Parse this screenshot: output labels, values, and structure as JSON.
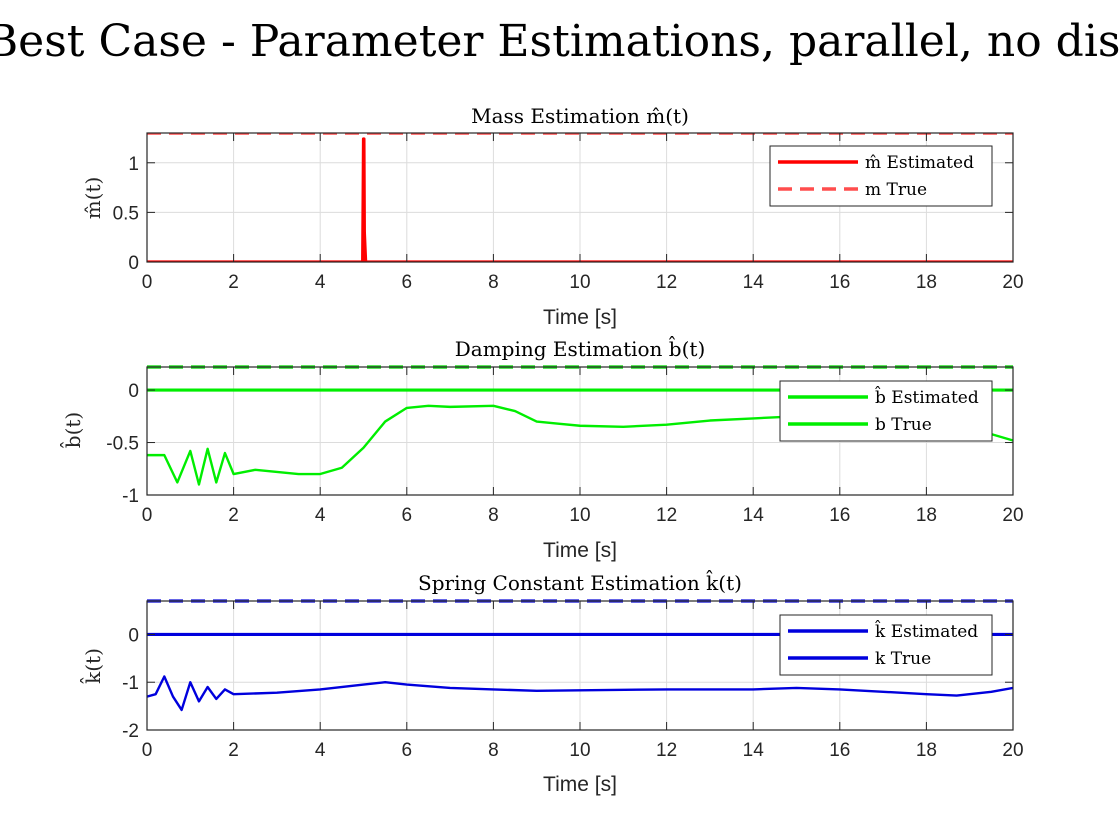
{
  "figure": {
    "title": "Best Case - Parameter Estimations, parallel, no dist"
  },
  "chart_data": [
    {
      "type": "line",
      "title": "Mass Estimation m̂(t)",
      "xlabel": "Time [s]",
      "ylabel": "m̂(t)",
      "xlim": [
        0,
        20
      ],
      "ylim": [
        0,
        1.3
      ],
      "xticks": [
        "0",
        "2",
        "4",
        "6",
        "8",
        "10",
        "12",
        "14",
        "16",
        "18",
        "20"
      ],
      "yticks": [
        "0",
        "0.5",
        "1"
      ],
      "ytick_values": [
        0,
        0.5,
        1
      ],
      "grid": true,
      "legend": "top-right",
      "series": [
        {
          "name": "m̂ Estimated",
          "color": "#ff0000",
          "style": "solid",
          "x": [
            0,
            4.98,
            4.99,
            5.0,
            5.01,
            5.02,
            5.05,
            20
          ],
          "y": [
            0,
            0,
            0.6,
            1.24,
            1.24,
            0.3,
            0,
            0
          ]
        },
        {
          "name": "m True",
          "color": "#ff4d4d",
          "style": "dashed",
          "x": [
            0,
            20
          ],
          "y": [
            1.3,
            1.3
          ]
        }
      ]
    },
    {
      "type": "line",
      "title": "Damping Estimation b̂(t)",
      "xlabel": "Time [s]",
      "ylabel": "b̂(t)",
      "xlim": [
        0,
        20
      ],
      "ylim": [
        -1,
        0.22
      ],
      "xticks": [
        "0",
        "2",
        "4",
        "6",
        "8",
        "10",
        "12",
        "14",
        "16",
        "18",
        "20"
      ],
      "yticks": [
        "-1",
        "-0.5",
        "0"
      ],
      "ytick_values": [
        -1,
        -0.5,
        0
      ],
      "grid": true,
      "legend": "top-right",
      "reference_lines": [
        {
          "y": 0.22,
          "color": "#22dd22",
          "style": "dashed"
        }
      ],
      "series": [
        {
          "name": "b̂ Estimated",
          "color": "#00ee00",
          "style": "solid",
          "x": [
            0,
            0.4,
            0.7,
            1.0,
            1.2,
            1.4,
            1.6,
            1.8,
            2.0,
            2.5,
            3.0,
            3.5,
            4.0,
            4.5,
            5.0,
            5.5,
            6.0,
            6.5,
            7.0,
            8.0,
            8.5,
            9.0,
            9.5,
            10.0,
            11.0,
            12.0,
            13.0,
            14.0,
            15.0,
            16.0,
            17.0,
            18.0,
            19.0,
            19.5,
            20.0
          ],
          "y": [
            -0.62,
            -0.62,
            -0.88,
            -0.58,
            -0.9,
            -0.56,
            -0.88,
            -0.6,
            -0.8,
            -0.76,
            -0.78,
            -0.8,
            -0.8,
            -0.74,
            -0.55,
            -0.3,
            -0.17,
            -0.15,
            -0.16,
            -0.15,
            -0.2,
            -0.3,
            -0.32,
            -0.34,
            -0.35,
            -0.33,
            -0.29,
            -0.27,
            -0.25,
            -0.24,
            -0.24,
            -0.26,
            -0.3,
            -0.42,
            -0.48
          ]
        },
        {
          "name": "b True",
          "color": "#00ee00",
          "style": "solid",
          "x": [
            0,
            20
          ],
          "y": [
            0,
            0
          ]
        }
      ]
    },
    {
      "type": "line",
      "title": "Spring Constant Estimation k̂(t)",
      "xlabel": "Time [s]",
      "ylabel": "k̂(t)",
      "xlim": [
        0,
        20
      ],
      "ylim": [
        -2,
        0.7
      ],
      "xticks": [
        "0",
        "2",
        "4",
        "6",
        "8",
        "10",
        "12",
        "14",
        "16",
        "18",
        "20"
      ],
      "yticks": [
        "-2",
        "-1",
        "0"
      ],
      "ytick_values": [
        -2,
        -1,
        0
      ],
      "grid": true,
      "legend": "top-right",
      "reference_lines": [
        {
          "y": 0.7,
          "color": "#3333dd",
          "style": "dashed"
        }
      ],
      "series": [
        {
          "name": "k̂ Estimated",
          "color": "#0000dd",
          "style": "solid",
          "x": [
            0,
            0.2,
            0.4,
            0.6,
            0.8,
            1.0,
            1.2,
            1.4,
            1.6,
            1.8,
            2.0,
            3.0,
            4.0,
            5.0,
            5.5,
            6.0,
            7.0,
            8.0,
            9.0,
            10.0,
            12.0,
            14.0,
            15.0,
            16.0,
            17.0,
            18.0,
            18.7,
            19.5,
            20.0
          ],
          "y": [
            -1.3,
            -1.25,
            -0.88,
            -1.3,
            -1.58,
            -1.0,
            -1.4,
            -1.1,
            -1.35,
            -1.15,
            -1.25,
            -1.22,
            -1.15,
            -1.05,
            -1.0,
            -1.05,
            -1.12,
            -1.15,
            -1.18,
            -1.17,
            -1.15,
            -1.15,
            -1.12,
            -1.15,
            -1.2,
            -1.25,
            -1.28,
            -1.2,
            -1.12
          ]
        },
        {
          "name": "k True",
          "color": "#0000dd",
          "style": "solid",
          "x": [
            0,
            20
          ],
          "y": [
            0,
            0
          ]
        }
      ]
    }
  ]
}
